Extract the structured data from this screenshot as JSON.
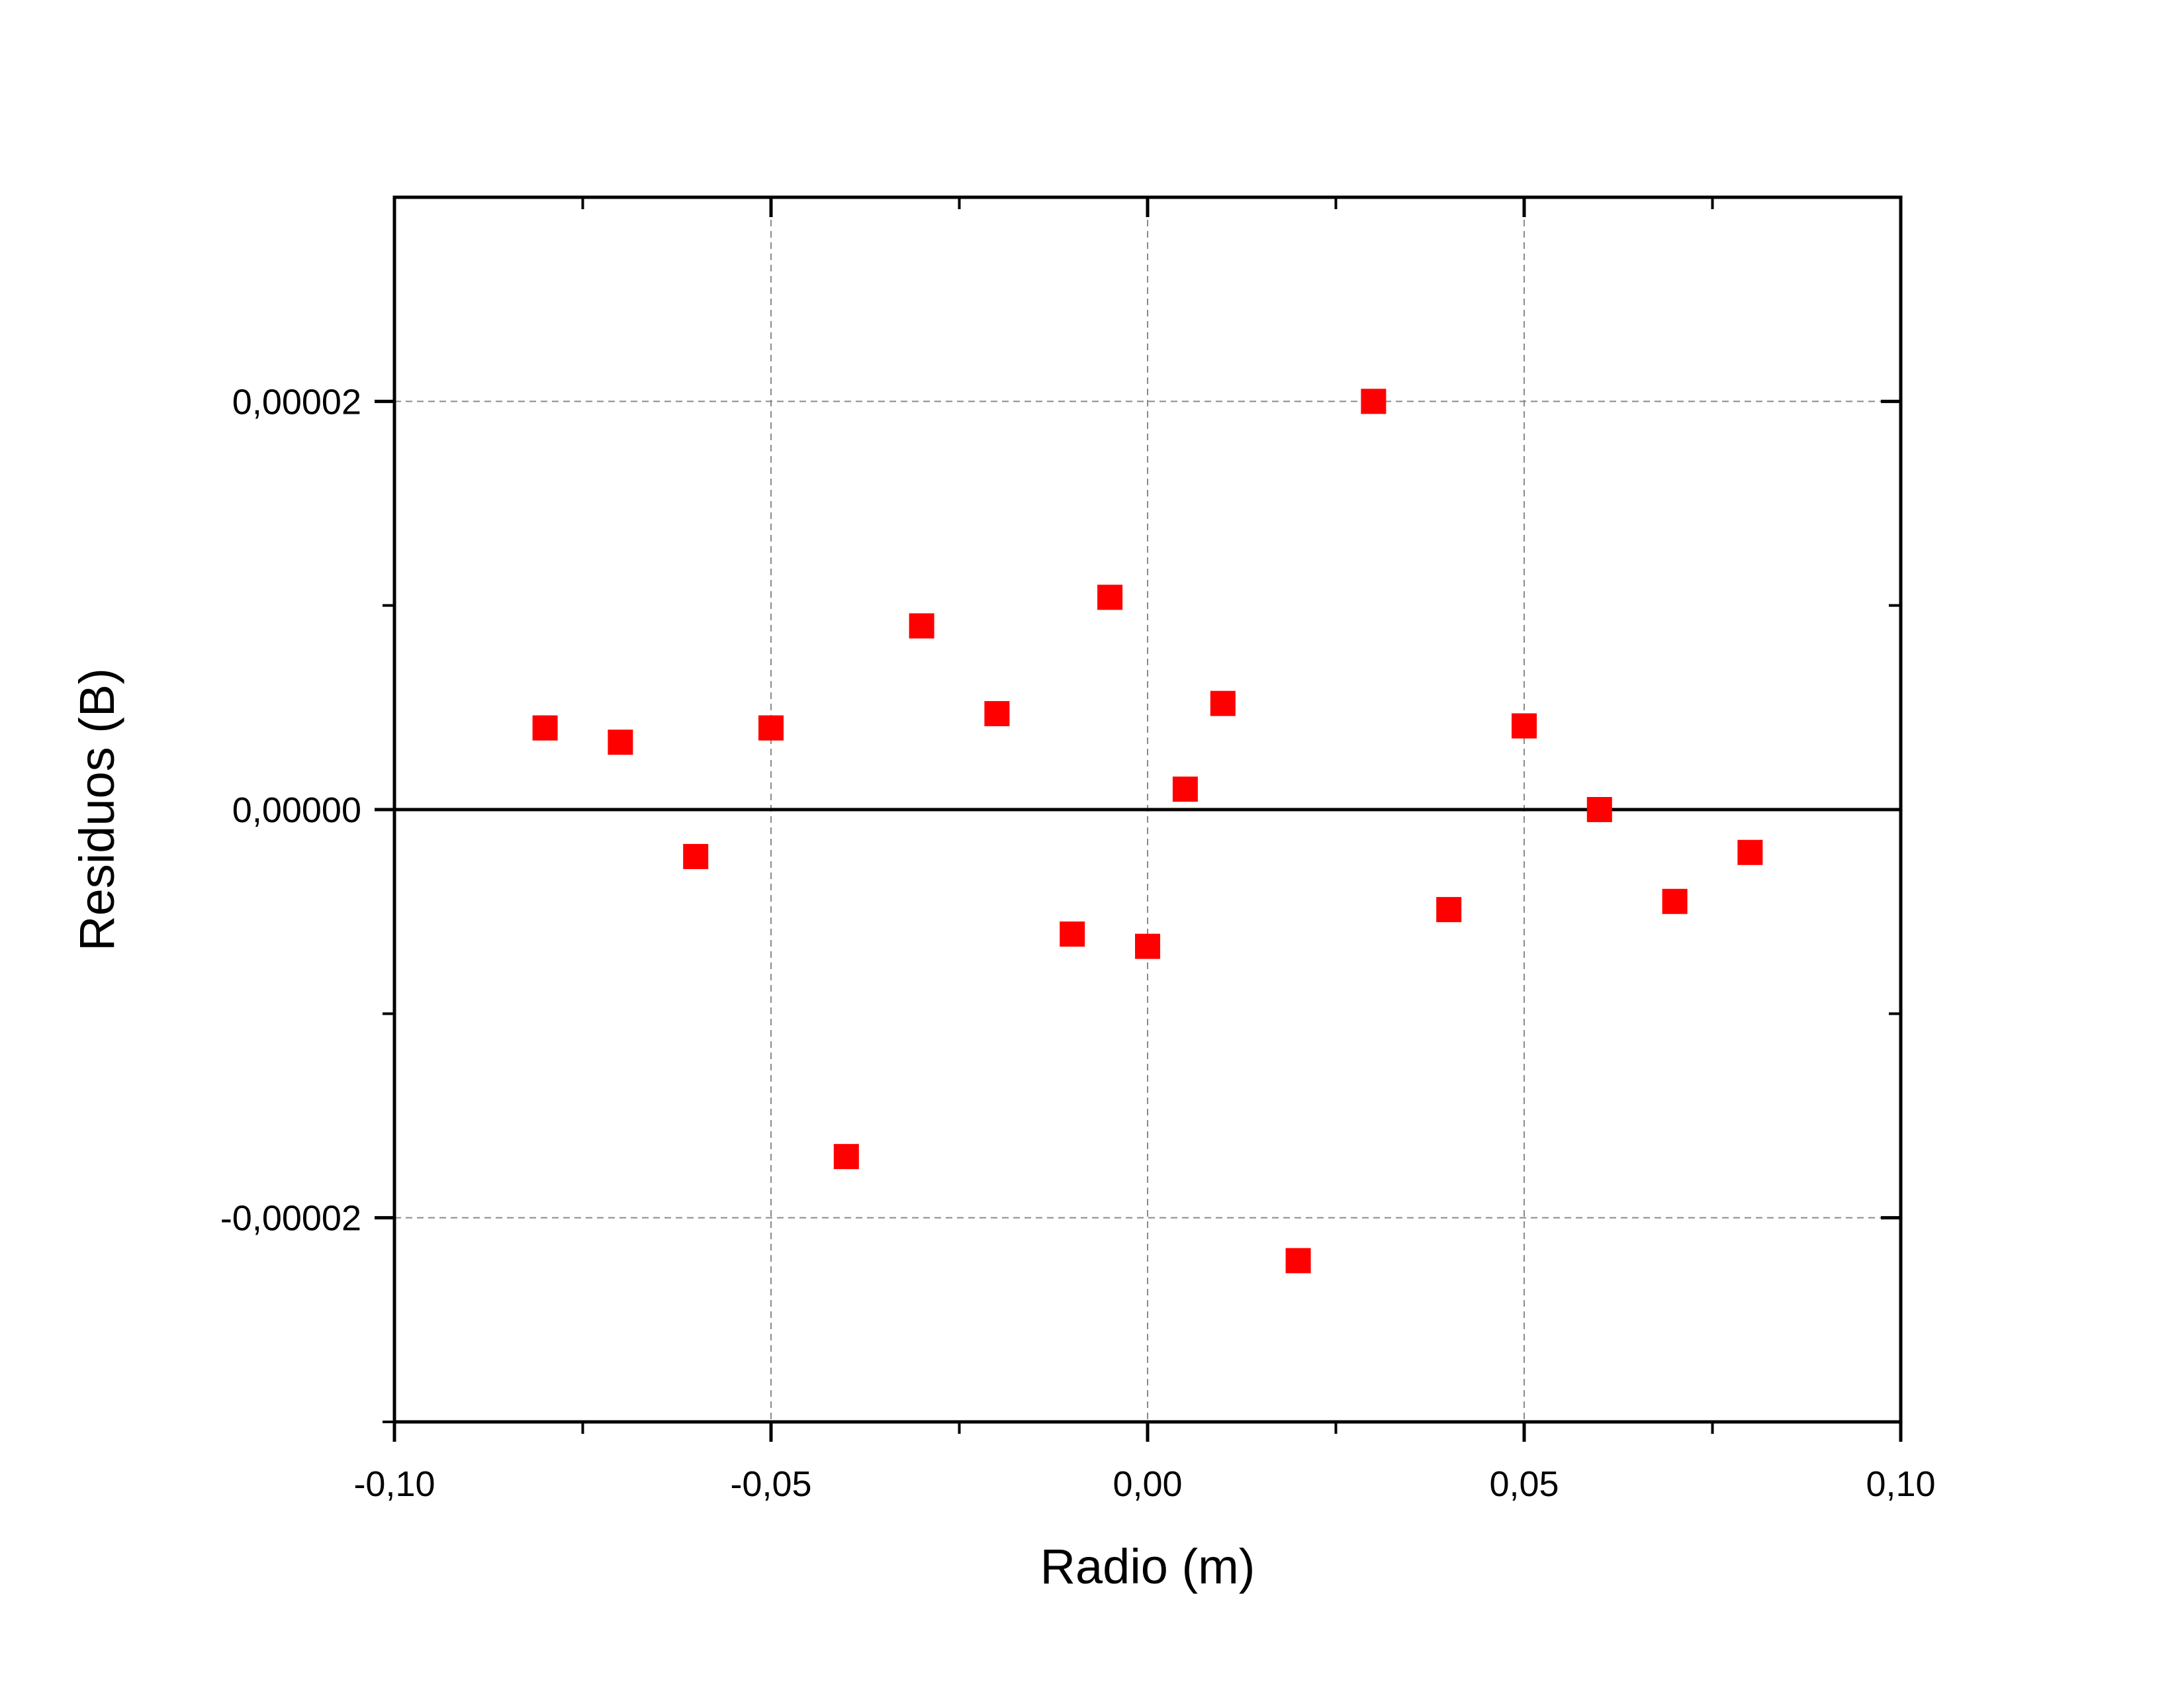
{
  "chart_data": {
    "type": "scatter",
    "title": "",
    "xlabel": "Radio (m)",
    "ylabel": "Residuos (B)",
    "xlim": [
      -0.1,
      0.1
    ],
    "ylim": [
      -3e-05,
      3e-05
    ],
    "x_ticks": [
      {
        "value": -0.1,
        "label": "-0,10"
      },
      {
        "value": -0.05,
        "label": "-0,05"
      },
      {
        "value": 0.0,
        "label": "0,00"
      },
      {
        "value": 0.05,
        "label": "0,05"
      },
      {
        "value": 0.1,
        "label": "0,10"
      }
    ],
    "x_minor_ticks": [
      -0.075,
      -0.025,
      0.025,
      0.075
    ],
    "y_ticks": [
      {
        "value": -2e-05,
        "label": "-0,00002"
      },
      {
        "value": 0.0,
        "label": "0,00000"
      },
      {
        "value": 2e-05,
        "label": "0,00002"
      }
    ],
    "y_minor_ticks": [
      -3e-05,
      -1e-05,
      1e-05
    ],
    "grid": true,
    "zero_line": true,
    "marker": "square",
    "marker_color": "#ff0000",
    "series": [
      {
        "x": [
          -0.08,
          -0.07,
          -0.06,
          -0.05,
          -0.04,
          -0.03,
          -0.02,
          -0.01,
          -0.005,
          0.0,
          0.005,
          0.01,
          0.02,
          0.03,
          0.04,
          0.05,
          0.06,
          0.07,
          0.08
        ],
        "y": [
          4e-06,
          3.3e-06,
          -2.3e-06,
          4e-06,
          -1.7e-05,
          9e-06,
          4.7e-06,
          -6.1e-06,
          1.04e-05,
          -6.7e-06,
          1e-06,
          5.2e-06,
          -2.21e-05,
          2e-05,
          -4.9e-06,
          4.1e-06,
          0.0,
          -4.5e-06,
          -2.1e-06
        ]
      }
    ]
  }
}
